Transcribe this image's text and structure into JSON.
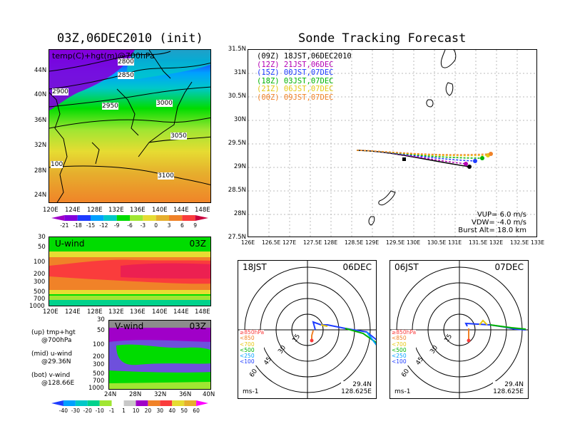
{
  "left_title": "03Z,06DEC2010 (init)",
  "right_title": "Sonde Tracking Forecast",
  "top_map": {
    "label": "temp(C)+hgt(m)@700hPa",
    "lat_ticks": [
      "44N",
      "40N",
      "36N",
      "32N",
      "28N",
      "24N"
    ],
    "lon_ticks": [
      "120E",
      "124E",
      "128E",
      "132E",
      "136E",
      "140E",
      "144E",
      "148E"
    ],
    "contours": [
      "2800",
      "2850",
      "2900",
      "2950",
      "3000",
      "3050",
      "100",
      "3100"
    ],
    "colorbar": [
      "-21",
      "-18",
      "-15",
      "-12",
      "-9",
      "-6",
      "-3",
      "0",
      "3",
      "6",
      "9"
    ],
    "colorbar_colors": [
      "#a000c8",
      "#8200dc",
      "#1e3cff",
      "#00a0ff",
      "#00c8c8",
      "#00dc00",
      "#a0e632",
      "#e6dc32",
      "#e6af2d",
      "#f08228",
      "#fa3c3c"
    ]
  },
  "u_panel": {
    "label": "U-wind",
    "time": "03Z",
    "p_ticks": [
      "30",
      "50",
      "100",
      "200",
      "300",
      "500",
      "700",
      "1000"
    ],
    "lon_ticks": [
      "120E",
      "124E",
      "128E",
      "132E",
      "136E",
      "140E",
      "144E",
      "148E"
    ]
  },
  "v_panel": {
    "label": "V-wind",
    "time": "03Z",
    "p_ticks": [
      "30",
      "50",
      "100",
      "200",
      "300",
      "500",
      "700",
      "1000"
    ],
    "lat_ticks": [
      "24N",
      "28N",
      "32N",
      "36N",
      "40N"
    ],
    "colorbar": [
      "-40",
      "-30",
      "-20",
      "-10",
      "-1",
      "1",
      "10",
      "20",
      "30",
      "40",
      "50",
      "60"
    ],
    "colorbar_colors": [
      "#1e3cff",
      "#00a0ff",
      "#00c8c8",
      "#00d28c",
      "#a0e632",
      "#ffffff",
      "#c8c8c8",
      "#a000c8",
      "#f08228",
      "#fa3c3c",
      "#e6dc32",
      "#e6af2d",
      "#ff00ff"
    ]
  },
  "legend_notes": [
    {
      "line1": "(up) tmp+hgt",
      "line2": "@700hPa"
    },
    {
      "line1": "(mid) u-wind",
      "line2": "@29.36N"
    },
    {
      "line1": "(bot) v-wind",
      "line2": "@128.66E"
    }
  ],
  "track_map": {
    "lat_ticks": [
      "31.5N",
      "31N",
      "30.5N",
      "30N",
      "29.5N",
      "29N",
      "28.5N",
      "28N",
      "27.5N"
    ],
    "lon_ticks": [
      "126E",
      "126.5E",
      "127E",
      "127.5E",
      "128E",
      "128.5E",
      "129E",
      "129.5E",
      "130E",
      "130.5E",
      "131E",
      "131.5E",
      "132E",
      "132.5E",
      "133E"
    ],
    "legend": [
      {
        "text": "(09Z) 18JST,06DEC2010",
        "color": "#000000"
      },
      {
        "text": "(12Z) 21JST,06DEC",
        "color": "#b400b4"
      },
      {
        "text": "(15Z) 00JST,07DEC",
        "color": "#1e3cff"
      },
      {
        "text": "(18Z) 03JST,07DEC",
        "color": "#00b400"
      },
      {
        "text": "(21Z) 06JST,07DEC",
        "color": "#e6c814"
      },
      {
        "text": "(00Z) 09JST,07DEC",
        "color": "#f08228"
      }
    ],
    "params": [
      "VUP= 6.0 m/s",
      "VDW= -4.0 m/s",
      "Burst Alt= 18.0 km"
    ]
  },
  "polar_left": {
    "left": "18JST",
    "right": "06DEC",
    "rings": [
      "15",
      "30",
      "45",
      "60"
    ],
    "levels": [
      "≥850hPa",
      "<850",
      "<700",
      "<500",
      "<250",
      "<100"
    ],
    "level_colors": [
      "#fa3c3c",
      "#f08228",
      "#e6c814",
      "#00b400",
      "#00a0ff",
      "#1e3cff"
    ],
    "unit": "ms-1",
    "lat": "29.4N",
    "lon": "128.625E"
  },
  "polar_right": {
    "left": "06JST",
    "right": "07DEC",
    "rings": [
      "15",
      "30",
      "45",
      "60"
    ],
    "levels": [
      "≥850hPa",
      "<850",
      "<700",
      "<500",
      "<250",
      "<100"
    ],
    "level_colors": [
      "#fa3c3c",
      "#f08228",
      "#e6c814",
      "#00b400",
      "#00a0ff",
      "#1e3cff"
    ],
    "unit": "ms-1",
    "lat": "29.4N",
    "lon": "128.625E"
  }
}
